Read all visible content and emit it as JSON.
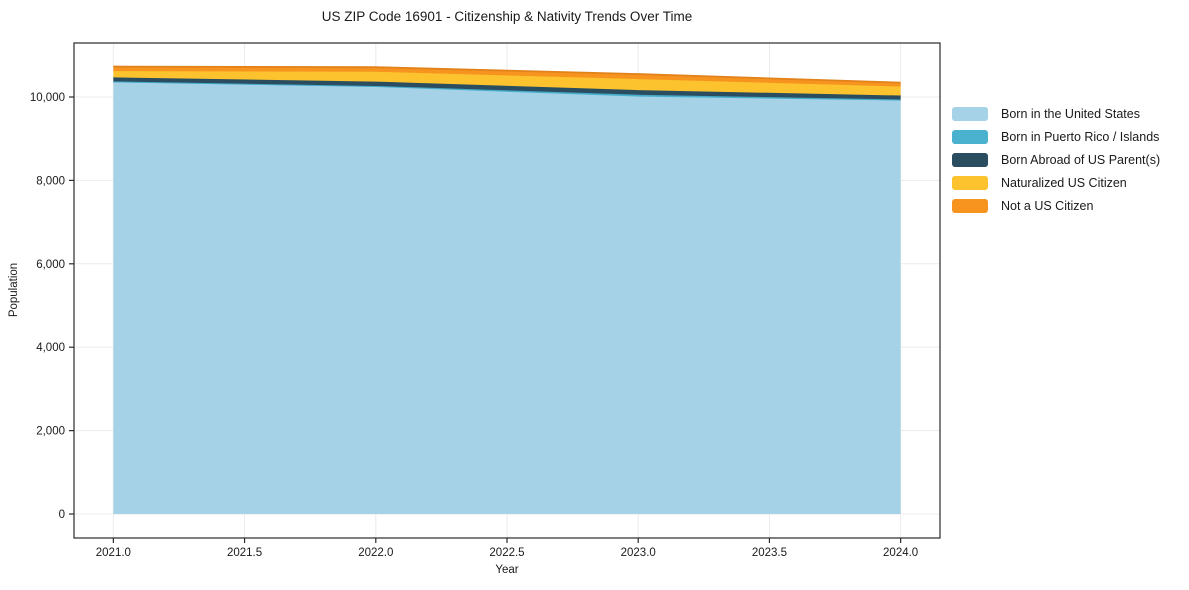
{
  "chart": {
    "title": "US ZIP Code 16901 - Citizenship & Nativity Trends Over Time",
    "xlabel": "Year",
    "ylabel": "Population"
  },
  "chart_data": {
    "type": "area",
    "stacked": true,
    "title": "US ZIP Code 16901 - Citizenship & Nativity Trends Over Time",
    "xlabel": "Year",
    "ylabel": "Population",
    "x": [
      2021,
      2022,
      2023,
      2024
    ],
    "series": [
      {
        "name": "Born in the United States",
        "values": [
          10350,
          10240,
          10010,
          9915
        ],
        "color": "#a6d2e7",
        "line_color": "#a6d2e7"
      },
      {
        "name": "Born in Puerto Rico / Islands",
        "values": [
          25,
          25,
          45,
          25
        ],
        "color": "#4ab2ce",
        "line_color": "#45a8c6"
      },
      {
        "name": "Born Abroad of US Parent(s)",
        "values": [
          95,
          105,
          110,
          95
        ],
        "color": "#2b4d60",
        "line_color": "#2b4d60"
      },
      {
        "name": "Naturalized US Citizen",
        "values": [
          150,
          235,
          265,
          215
        ],
        "color": "#fcc32e",
        "line_color": "#fcc32e"
      },
      {
        "name": "Not a US Citizen",
        "values": [
          110,
          110,
          120,
          95
        ],
        "color": "#f7941f",
        "line_color": "#e2821a"
      }
    ],
    "xlim": [
      2020.85,
      2024.15
    ],
    "ylim": [
      -575,
      11295
    ],
    "xticks": {
      "values": [
        2021.0,
        2021.5,
        2022.0,
        2022.5,
        2023.0,
        2023.5,
        2024.0
      ],
      "labels": [
        "2021.0",
        "2021.5",
        "2022.0",
        "2022.5",
        "2023.0",
        "2023.5",
        "2024.0"
      ]
    },
    "yticks": {
      "values": [
        0,
        2000,
        4000,
        6000,
        8000,
        10000
      ],
      "labels": [
        "0",
        "2,000",
        "4,000",
        "6,000",
        "8,000",
        "10,000"
      ]
    },
    "grid": true,
    "legend_position": "right-outside"
  },
  "colors": {
    "background": "#ffffff",
    "grid": "#ebebeb",
    "spine": "#2a2a2a",
    "tick": "#2a2a2a",
    "text": "#1a1a1a"
  }
}
